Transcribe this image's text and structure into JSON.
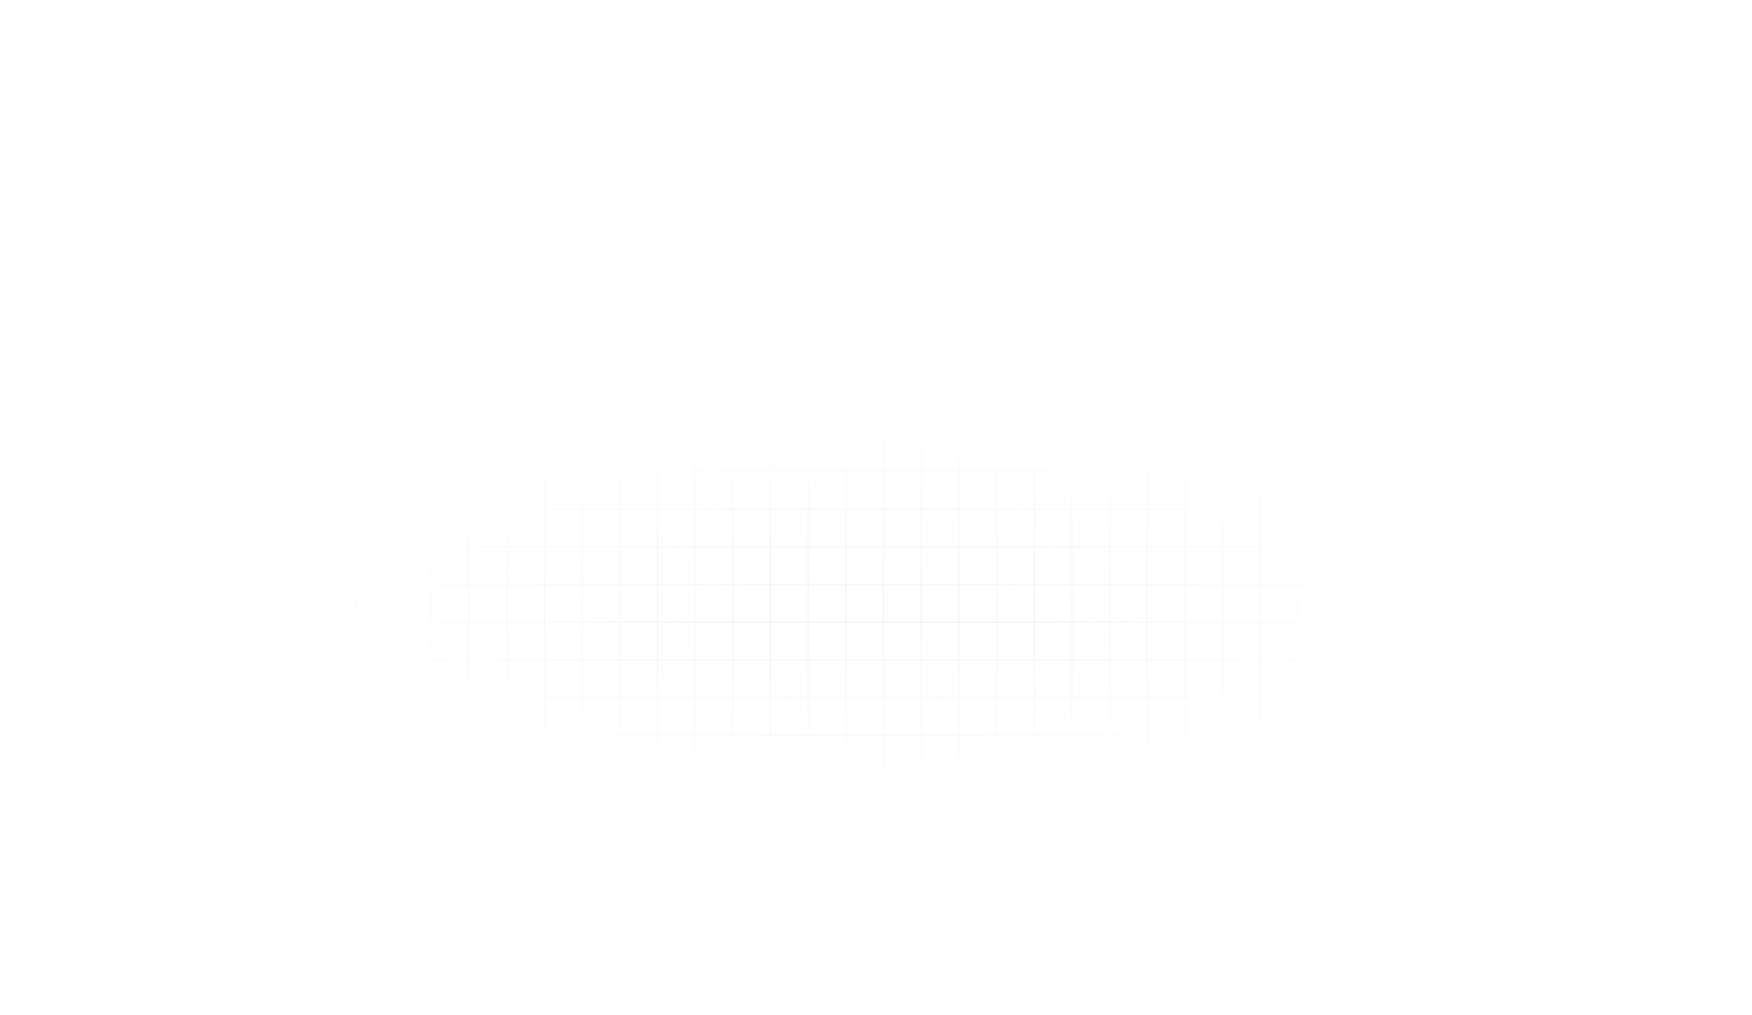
{
  "page": {
    "background_color": "#ffffff",
    "grid_line_color": "#c8cdd7"
  }
}
